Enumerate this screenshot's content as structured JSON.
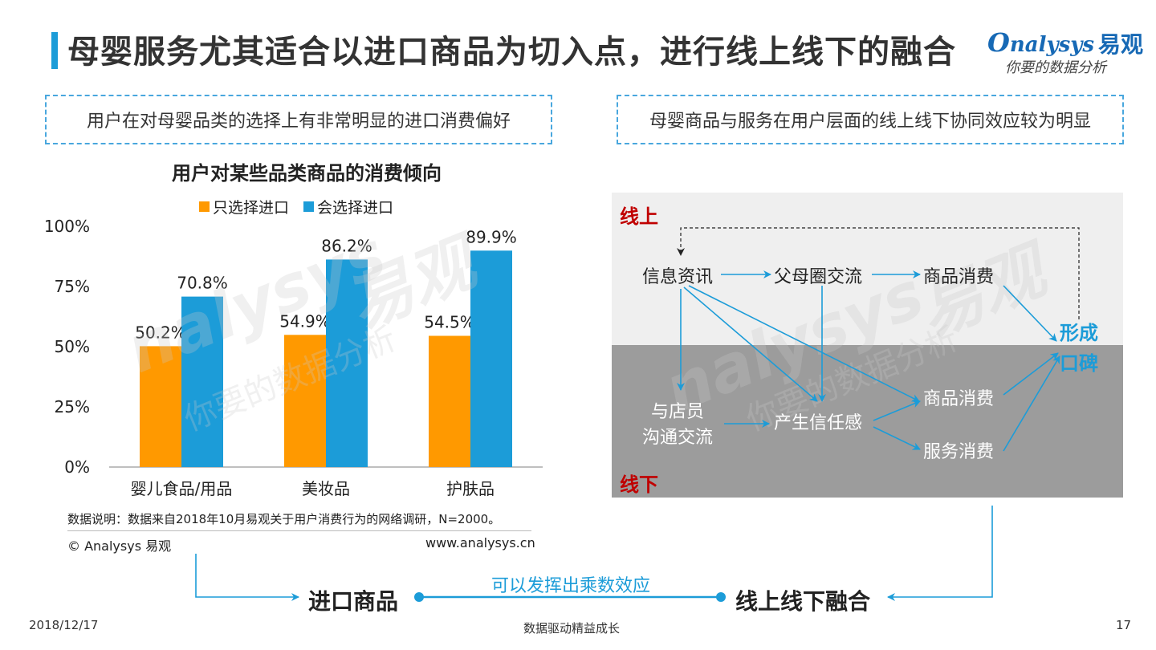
{
  "title": "母婴服务尤其适合以进口商品为切入点，进行线上线下的融合",
  "logo": {
    "en": "nalysys",
    "cn": "易观",
    "slogan": "你要的数据分析"
  },
  "left_box": "用户在对母婴品类的选择上有非常明显的进口消费偏好",
  "right_box": "母婴商品与服务在用户层面的线上线下协同效应较为明显",
  "watermark": {
    "en": "nalysys",
    "cn": "易观",
    "slogan": "你要的数据分析"
  },
  "chart_data": {
    "type": "bar",
    "title": "用户对某些品类商品的消费倾向",
    "categories": [
      "婴儿食品/用品",
      "美妆品",
      "护肤品"
    ],
    "series": [
      {
        "name": "只选择进口",
        "values": [
          50.2,
          54.9,
          54.5
        ],
        "color": "#ff9900"
      },
      {
        "name": "会选择进口",
        "values": [
          70.8,
          86.2,
          89.9
        ],
        "color": "#1c9cd8"
      }
    ],
    "ylim": [
      0,
      100
    ],
    "yticks": [
      "0%",
      "25%",
      "50%",
      "75%",
      "100%"
    ],
    "ytick_values": [
      0,
      25,
      50,
      75,
      100
    ],
    "value_suffix": "%",
    "legend": "top"
  },
  "note": "数据说明：数据来自2018年10月易观关于用户消费行为的网络调研，N=2000。",
  "copyright": "© Analysys 易观",
  "website": "www.analysys.cn",
  "flow": {
    "online_label": "线上",
    "offline_label": "线下",
    "info": "信息资讯",
    "parent_circle": "父母圈交流",
    "goods_online": "商品消费",
    "staff_line1": "与店员",
    "staff_line2": "沟通交流",
    "trust": "产生信任感",
    "goods_offline": "商品消费",
    "service": "服务消费",
    "word_of_mouth_line1": "形成",
    "word_of_mouth_line2": "口碑"
  },
  "bottom": {
    "imported": "进口商品",
    "multiplier": "可以发挥出乘数效应",
    "fusion": "线上线下融合"
  },
  "footer": {
    "date": "2018/12/17",
    "center": "数据驱动精益成长",
    "page": "17"
  },
  "colors": {
    "accent": "#1c9cd8",
    "orange": "#ff9900",
    "red_label": "#c00000"
  }
}
